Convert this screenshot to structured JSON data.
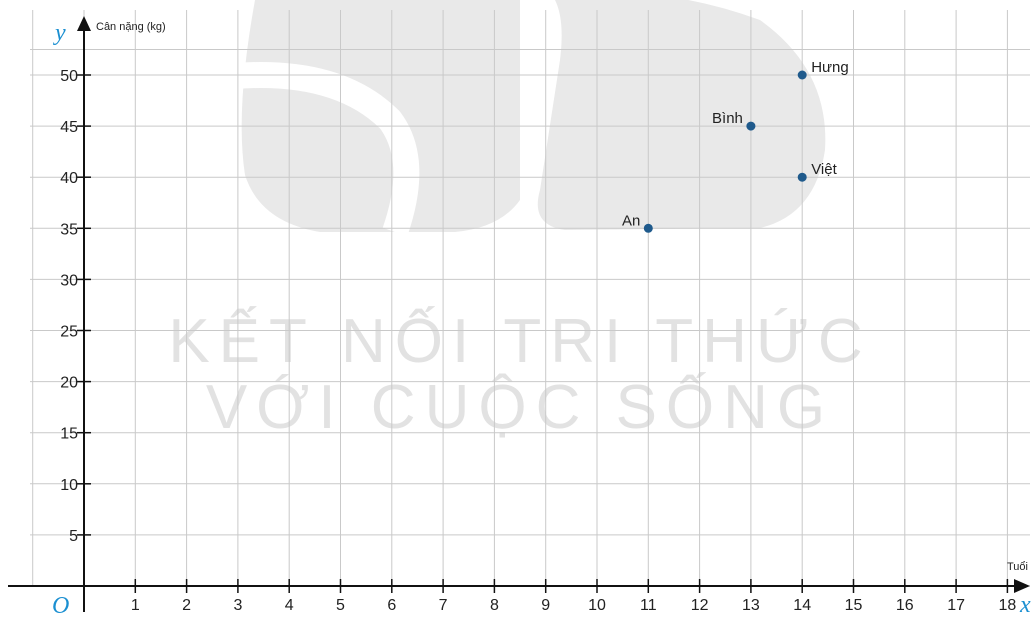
{
  "colors": {
    "grid": "#c9c9c9",
    "axis": "#111111",
    "point": "#1f5a8c",
    "axis_letter": "#1a8fd1",
    "watermark": "#e2e2e2"
  },
  "watermark": {
    "line1": "KẾT NỐI TRI THỨC",
    "line2": "VỚI CUỘC SỐNG"
  },
  "chart_data": {
    "type": "scatter",
    "title": "",
    "xlabel": "Tuổi",
    "ylabel": "Cân nặng (kg)",
    "x_axis_letter": "x",
    "y_axis_letter": "y",
    "origin_label": "O",
    "xlim": [
      0,
      18
    ],
    "ylim": [
      0,
      50
    ],
    "x_ticks": [
      "1",
      "2",
      "3",
      "4",
      "5",
      "6",
      "7",
      "8",
      "9",
      "10",
      "11",
      "12",
      "13",
      "14",
      "15",
      "16",
      "17",
      "18"
    ],
    "y_ticks": [
      "5",
      "10",
      "15",
      "20",
      "25",
      "30",
      "35",
      "40",
      "45",
      "50"
    ],
    "grid": true,
    "points": [
      {
        "label": "An",
        "x": 11,
        "y": 35
      },
      {
        "label": "Bình",
        "x": 13,
        "y": 45
      },
      {
        "label": "Hưng",
        "x": 14,
        "y": 50
      },
      {
        "label": "Việt",
        "x": 14,
        "y": 40
      }
    ]
  }
}
